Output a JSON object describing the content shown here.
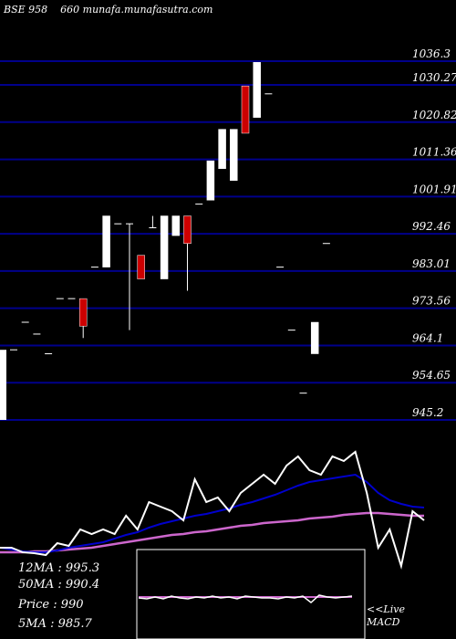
{
  "header": {
    "symbol": "BSE 958",
    "code": "660",
    "site": "munafa.munafasutra.com"
  },
  "indicators": {
    "ma12": "12MA : 995.3",
    "ma50": "50MA : 990.4",
    "price": "Price   : 990",
    "ma5": "5MA : 985.7"
  },
  "macd_label": {
    "line1": "<<Live",
    "line2": "MACD"
  },
  "colors": {
    "grid": "#00008b",
    "bull": "#ffffff",
    "bear": "#cc0000",
    "ma_blue": "#0000cc",
    "ma_pink": "#cc66cc",
    "oscillator": "#ffffff"
  },
  "chart_data": {
    "type": "candlestick",
    "y_ticks": [
      "1036.3",
      "1030.27",
      "1020.82",
      "1011.36",
      "1001.91",
      "992.46",
      "983.01",
      "973.56",
      "964.1",
      "954.65",
      "945.2"
    ],
    "ylim": [
      945.2,
      1036.3
    ],
    "candles": [
      {
        "o": 963,
        "h": 963,
        "l": 963,
        "c": 963,
        "dir": "flat"
      },
      {
        "o": 970,
        "h": 970,
        "l": 970,
        "c": 970,
        "dir": "flat"
      },
      {
        "o": 967,
        "h": 967,
        "l": 967,
        "c": 967,
        "dir": "flat"
      },
      {
        "o": 962,
        "h": 962,
        "l": 962,
        "c": 962,
        "dir": "flat"
      },
      {
        "o": 976,
        "h": 976,
        "l": 976,
        "c": 976,
        "dir": "flat"
      },
      {
        "o": 976,
        "h": 976,
        "l": 976,
        "c": 976,
        "dir": "flat"
      },
      {
        "o": 969,
        "h": 976,
        "l": 966,
        "c": 976,
        "dir": "bear"
      },
      {
        "o": 984,
        "h": 984,
        "l": 984,
        "c": 984,
        "dir": "flat"
      },
      {
        "o": 984,
        "h": 997,
        "l": 984,
        "c": 997,
        "dir": "bull"
      },
      {
        "o": 995,
        "h": 995,
        "l": 995,
        "c": 995,
        "dir": "flat"
      },
      {
        "o": 995,
        "h": 995,
        "l": 968,
        "c": 995,
        "dir": "flat"
      },
      {
        "o": 981,
        "h": 987,
        "l": 981,
        "c": 987,
        "dir": "bear"
      },
      {
        "o": 994,
        "h": 997,
        "l": 994,
        "c": 994,
        "dir": "flat"
      },
      {
        "o": 981,
        "h": 997,
        "l": 981,
        "c": 997,
        "dir": "bull"
      },
      {
        "o": 992,
        "h": 997,
        "l": 992,
        "c": 997,
        "dir": "bull"
      },
      {
        "o": 997,
        "h": 997,
        "l": 978,
        "c": 990,
        "dir": "bear"
      },
      {
        "o": 1000,
        "h": 1000,
        "l": 1000,
        "c": 1000,
        "dir": "flat"
      },
      {
        "o": 1001,
        "h": 1011,
        "l": 1001,
        "c": 1011,
        "dir": "bull"
      },
      {
        "o": 1019,
        "h": 1019,
        "l": 1009,
        "c": 1009,
        "dir": "flat"
      },
      {
        "o": 1006,
        "h": 1019,
        "l": 1006,
        "c": 1019,
        "dir": "bull"
      },
      {
        "o": 1030,
        "h": 1030,
        "l": 1018,
        "c": 1018,
        "dir": "bear"
      },
      {
        "o": 1036,
        "h": 1036,
        "l": 1022,
        "c": 1022,
        "dir": "bull"
      },
      {
        "o": 1028,
        "h": 1028,
        "l": 1028,
        "c": 1028,
        "dir": "flat"
      },
      {
        "o": 984,
        "h": 984,
        "l": 984,
        "c": 984,
        "dir": "flat"
      },
      {
        "o": 968,
        "h": 968,
        "l": 968,
        "c": 968,
        "dir": "flat"
      },
      {
        "o": 952,
        "h": 952,
        "l": 952,
        "c": 952,
        "dir": "flat"
      },
      {
        "o": 962,
        "h": 970,
        "l": 962,
        "c": 970,
        "dir": "bull"
      },
      {
        "o": 990,
        "h": 990,
        "l": 990,
        "c": 990,
        "dir": "flat"
      }
    ],
    "osc_series": {
      "price_line": [
        600,
        600,
        605,
        606,
        608,
        595,
        598,
        580,
        585,
        580,
        585,
        565,
        580,
        550,
        555,
        560,
        570,
        525,
        550,
        545,
        560,
        540,
        530,
        520,
        530,
        510,
        500,
        515,
        520,
        500,
        505,
        495,
        540,
        600,
        580,
        620,
        560,
        570
      ],
      "ma_fast": [
        600,
        602,
        604,
        605,
        605,
        603,
        600,
        598,
        596,
        594,
        590,
        586,
        583,
        578,
        574,
        571,
        568,
        565,
        563,
        560,
        557,
        553,
        550,
        546,
        542,
        537,
        532,
        528,
        526,
        524,
        522,
        520,
        528,
        540,
        548,
        552,
        555,
        556
      ],
      "ma_slow": [
        605,
        605,
        605,
        604,
        604,
        603,
        602,
        601,
        600,
        598,
        596,
        594,
        592,
        590,
        588,
        586,
        585,
        583,
        582,
        580,
        578,
        576,
        575,
        573,
        572,
        571,
        570,
        568,
        567,
        566,
        564,
        563,
        562,
        562,
        563,
        564,
        565,
        565
      ]
    },
    "macd_series": [
      655,
      656,
      654,
      656,
      653,
      655,
      656,
      654,
      655,
      653,
      655,
      654,
      656,
      653,
      654,
      655,
      655,
      656,
      654,
      655,
      653,
      660,
      652,
      654,
      655,
      654,
      653
    ],
    "macd_signal": [
      654,
      654,
      654,
      654,
      654,
      654,
      654,
      654,
      654,
      654,
      654,
      654,
      654,
      654,
      654,
      654,
      654,
      654,
      654,
      654,
      654,
      654,
      654,
      654,
      654,
      654,
      654
    ]
  }
}
